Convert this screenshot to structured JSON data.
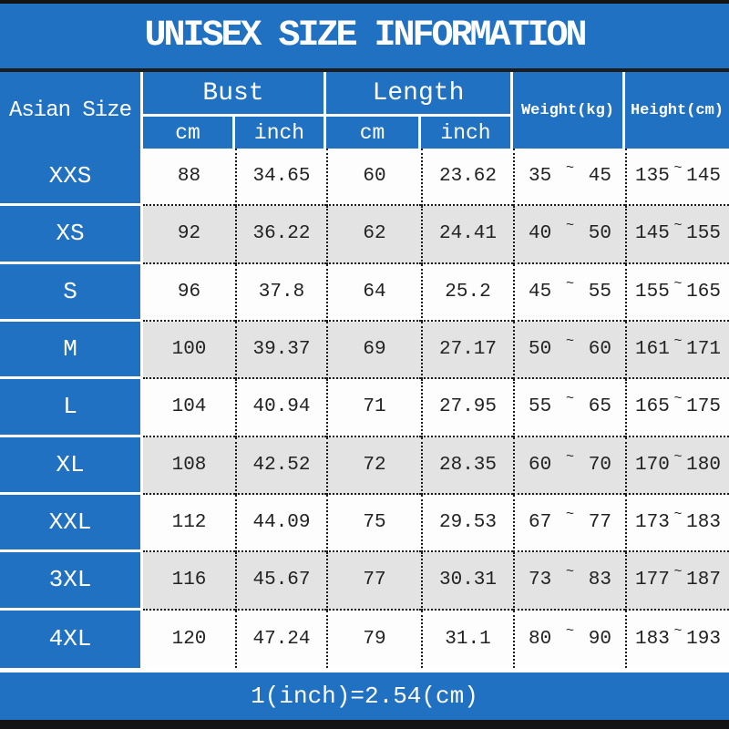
{
  "title": "UNISEX SIZE INFORMATION",
  "colors": {
    "blue": "#2171c2",
    "gray_row": "#e3e3e3",
    "bar_black": "#141414",
    "text": "#222222"
  },
  "table": {
    "size_col_header": "Asian Size",
    "groups": {
      "bust": "Bust",
      "length": "Length"
    },
    "units": {
      "cm": "cm",
      "inch": "inch"
    },
    "weight_header": "Weight(kg)",
    "height_header": "Height(cm)",
    "tilde": "~",
    "rows": [
      {
        "size": "XXS",
        "bust_cm": "88",
        "bust_inch": "34.65",
        "length_cm": "60",
        "length_inch": "23.62",
        "weight_min": "35",
        "weight_max": "45",
        "height_min": "135",
        "height_max": "145"
      },
      {
        "size": "XS",
        "bust_cm": "92",
        "bust_inch": "36.22",
        "length_cm": "62",
        "length_inch": "24.41",
        "weight_min": "40",
        "weight_max": "50",
        "height_min": "145",
        "height_max": "155"
      },
      {
        "size": "S",
        "bust_cm": "96",
        "bust_inch": "37.8",
        "length_cm": "64",
        "length_inch": "25.2",
        "weight_min": "45",
        "weight_max": "55",
        "height_min": "155",
        "height_max": "165"
      },
      {
        "size": "M",
        "bust_cm": "100",
        "bust_inch": "39.37",
        "length_cm": "69",
        "length_inch": "27.17",
        "weight_min": "50",
        "weight_max": "60",
        "height_min": "161",
        "height_max": "171"
      },
      {
        "size": "L",
        "bust_cm": "104",
        "bust_inch": "40.94",
        "length_cm": "71",
        "length_inch": "27.95",
        "weight_min": "55",
        "weight_max": "65",
        "height_min": "165",
        "height_max": "175"
      },
      {
        "size": "XL",
        "bust_cm": "108",
        "bust_inch": "42.52",
        "length_cm": "72",
        "length_inch": "28.35",
        "weight_min": "60",
        "weight_max": "70",
        "height_min": "170",
        "height_max": "180"
      },
      {
        "size": "XXL",
        "bust_cm": "112",
        "bust_inch": "44.09",
        "length_cm": "75",
        "length_inch": "29.53",
        "weight_min": "67",
        "weight_max": "77",
        "height_min": "173",
        "height_max": "183"
      },
      {
        "size": "3XL",
        "bust_cm": "116",
        "bust_inch": "45.67",
        "length_cm": "77",
        "length_inch": "30.31",
        "weight_min": "73",
        "weight_max": "83",
        "height_min": "177",
        "height_max": "187"
      },
      {
        "size": "4XL",
        "bust_cm": "120",
        "bust_inch": "47.24",
        "length_cm": "79",
        "length_inch": "31.1",
        "weight_min": "80",
        "weight_max": "90",
        "height_min": "183",
        "height_max": "193"
      }
    ]
  },
  "footer": {
    "note": "1(inch)=2.54(cm)"
  },
  "chart_data": {
    "type": "table",
    "title": "UNISEX SIZE INFORMATION",
    "columns": [
      "Asian Size",
      "Bust cm",
      "Bust inch",
      "Length cm",
      "Length inch",
      "Weight(kg)",
      "Height(cm)"
    ],
    "rows": [
      [
        "XXS",
        88,
        34.65,
        60,
        23.62,
        "35~45",
        "135~145"
      ],
      [
        "XS",
        92,
        36.22,
        62,
        24.41,
        "40~50",
        "145~155"
      ],
      [
        "S",
        96,
        37.8,
        64,
        25.2,
        "45~55",
        "155~165"
      ],
      [
        "M",
        100,
        39.37,
        69,
        27.17,
        "50~60",
        "161~171"
      ],
      [
        "L",
        104,
        40.94,
        71,
        27.95,
        "55~65",
        "165~175"
      ],
      [
        "XL",
        108,
        42.52,
        72,
        28.35,
        "60~70",
        "170~180"
      ],
      [
        "XXL",
        112,
        44.09,
        75,
        29.53,
        "67~77",
        "173~183"
      ],
      [
        "3XL",
        116,
        45.67,
        77,
        30.31,
        "73~83",
        "177~187"
      ],
      [
        "4XL",
        120,
        47.24,
        79,
        31.1,
        "80~90",
        "183~193"
      ]
    ],
    "footnote": "1(inch)=2.54(cm)"
  }
}
